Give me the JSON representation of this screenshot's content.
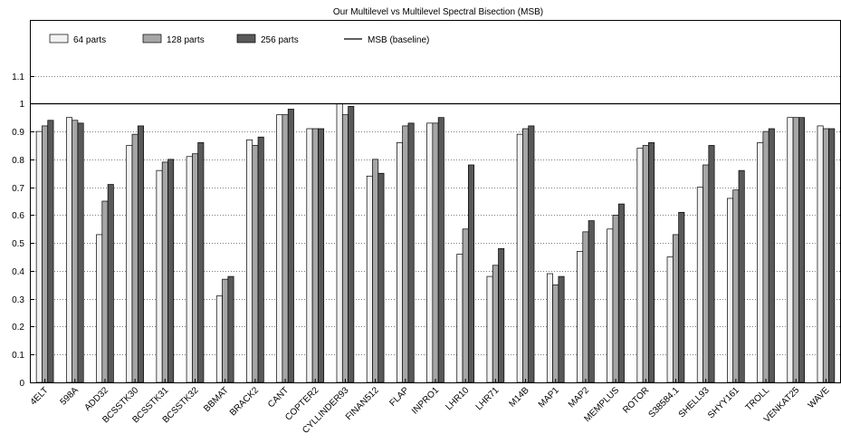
{
  "chart_data": {
    "type": "bar",
    "title": "Our Multilevel vs Multilevel Spectral Bisection (MSB)",
    "xlabel": "",
    "ylabel": "",
    "ylim": [
      0,
      1.3
    ],
    "yticks": [
      0,
      0.1,
      0.2,
      0.3,
      0.4,
      0.5,
      0.6,
      0.7,
      0.8,
      0.9,
      1,
      1.1
    ],
    "ytick_labels": [
      "0",
      "0.1",
      "0.2",
      "0.3",
      "0.4",
      "0.5",
      "0.6",
      "0.7",
      "0.8",
      "0.9",
      "1",
      "1.1"
    ],
    "grid": "horizontal dotted",
    "legend_position": "top-left",
    "categories": [
      "4ELT",
      "598A",
      "ADD32",
      "BCSSTK30",
      "BCSSTK31",
      "BCSSTK32",
      "BBMAT",
      "BRACK2",
      "CANT",
      "COPTER2",
      "CYLLINDER93",
      "FINAN512",
      "FLAP",
      "INPRO1",
      "LHR10",
      "LHR71",
      "M14B",
      "MAP1",
      "MAP2",
      "MEMPLUS",
      "ROTOR",
      "S38584.1",
      "SHELL93",
      "SHYY161",
      "TROLL",
      "VENKAT25",
      "WAVE"
    ],
    "series": [
      {
        "name": "64 parts",
        "color": "#f2f2f2",
        "values": [
          0.9,
          0.95,
          0.53,
          0.85,
          0.76,
          0.81,
          0.31,
          0.87,
          0.96,
          0.91,
          1.0,
          0.74,
          0.86,
          0.93,
          0.46,
          0.38,
          0.89,
          0.39,
          0.47,
          0.55,
          0.84,
          0.45,
          0.7,
          0.66,
          0.86,
          0.95,
          0.92
        ]
      },
      {
        "name": "128 parts",
        "color": "#a6a6a6",
        "values": [
          0.92,
          0.94,
          0.65,
          0.89,
          0.79,
          0.82,
          0.37,
          0.85,
          0.96,
          0.91,
          0.96,
          0.8,
          0.92,
          0.93,
          0.55,
          0.42,
          0.91,
          0.35,
          0.54,
          0.6,
          0.85,
          0.53,
          0.78,
          0.69,
          0.9,
          0.95,
          0.91
        ]
      },
      {
        "name": "256 parts",
        "color": "#595959",
        "values": [
          0.94,
          0.93,
          0.71,
          0.92,
          0.8,
          0.86,
          0.38,
          0.88,
          0.98,
          0.91,
          0.99,
          0.75,
          0.93,
          0.95,
          0.78,
          0.48,
          0.92,
          0.38,
          0.58,
          0.64,
          0.86,
          0.61,
          0.85,
          0.76,
          0.91,
          0.95,
          0.91
        ]
      }
    ],
    "baseline": {
      "name": "MSB (baseline)",
      "value": 1.0,
      "color": "#000000"
    }
  }
}
